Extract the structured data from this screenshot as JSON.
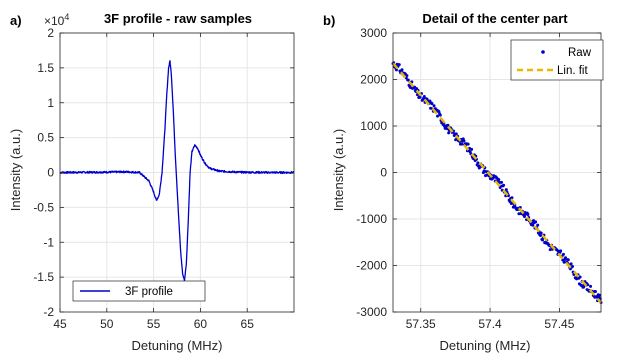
{
  "chart_data": [
    {
      "type": "line",
      "panel": "a)",
      "title": "3F profile - raw samples",
      "xlabel": "Detuning (MHz)",
      "ylabel": "Intensity (a.u.)",
      "xlim": [
        45,
        70
      ],
      "ylim": [
        -20000,
        20000
      ],
      "y_exponent_label": "×10",
      "y_exponent_power": "4",
      "xticks": [
        45,
        50,
        55,
        60,
        65
      ],
      "xtick_labels": [
        "45",
        "50",
        "55",
        "60",
        "65"
      ],
      "yticks": [
        -20000,
        -15000,
        -10000,
        -5000,
        0,
        5000,
        10000,
        15000,
        20000
      ],
      "ytick_labels": [
        "-2",
        "-1.5",
        "-1",
        "-0.5",
        "0",
        "0.5",
        "1",
        "1.5",
        "2"
      ],
      "grid": true,
      "legend_position": "bottom-left",
      "series": [
        {
          "name": "3F profile",
          "color": "#0000cc",
          "x": [
            45,
            50,
            52,
            53.5,
            54.5,
            55.0,
            55.3,
            55.6,
            55.9,
            56.2,
            56.4,
            56.6,
            56.75,
            56.9,
            57.1,
            57.3,
            57.5,
            57.7,
            57.9,
            58.1,
            58.3,
            58.5,
            58.7,
            58.9,
            59.1,
            59.4,
            59.7,
            60.0,
            60.5,
            61.0,
            62.0,
            64.0,
            67.0,
            70.0
          ],
          "y": [
            0,
            50,
            100,
            0,
            -1200,
            -2800,
            -4000,
            -3200,
            0,
            6000,
            11000,
            15000,
            16000,
            14000,
            9000,
            3000,
            -2000,
            -7000,
            -11500,
            -14500,
            -15500,
            -13000,
            -7000,
            0,
            3000,
            3900,
            3500,
            2500,
            1300,
            600,
            200,
            50,
            0,
            0
          ]
        }
      ]
    },
    {
      "type": "scatter",
      "panel": "b)",
      "title": "Detail of the center part",
      "xlabel": "Detuning (MHz)",
      "ylabel": "Intensity (a.u.)",
      "xlim": [
        57.33,
        57.48
      ],
      "ylim": [
        -3000,
        3000
      ],
      "xticks": [
        57.35,
        57.4,
        57.45
      ],
      "xtick_labels": [
        "57.35",
        "57.4",
        "57.45"
      ],
      "yticks": [
        -3000,
        -2000,
        -1000,
        0,
        1000,
        2000,
        3000
      ],
      "ytick_labels": [
        "-3000",
        "-2000",
        "-1000",
        "0",
        "1000",
        "2000",
        "3000"
      ],
      "grid": true,
      "legend_position": "top-right",
      "series": [
        {
          "name": "Raw",
          "color": "#0000cc",
          "x_start": 57.33,
          "x_end": 57.48,
          "y_start": 2350,
          "y_end": -2800,
          "noise_amplitude": 110,
          "num_points": 300
        },
        {
          "name": "Lin. fit",
          "color": "#e8b800",
          "x": [
            57.33,
            57.48
          ],
          "y": [
            2350,
            -2800
          ]
        }
      ]
    }
  ]
}
